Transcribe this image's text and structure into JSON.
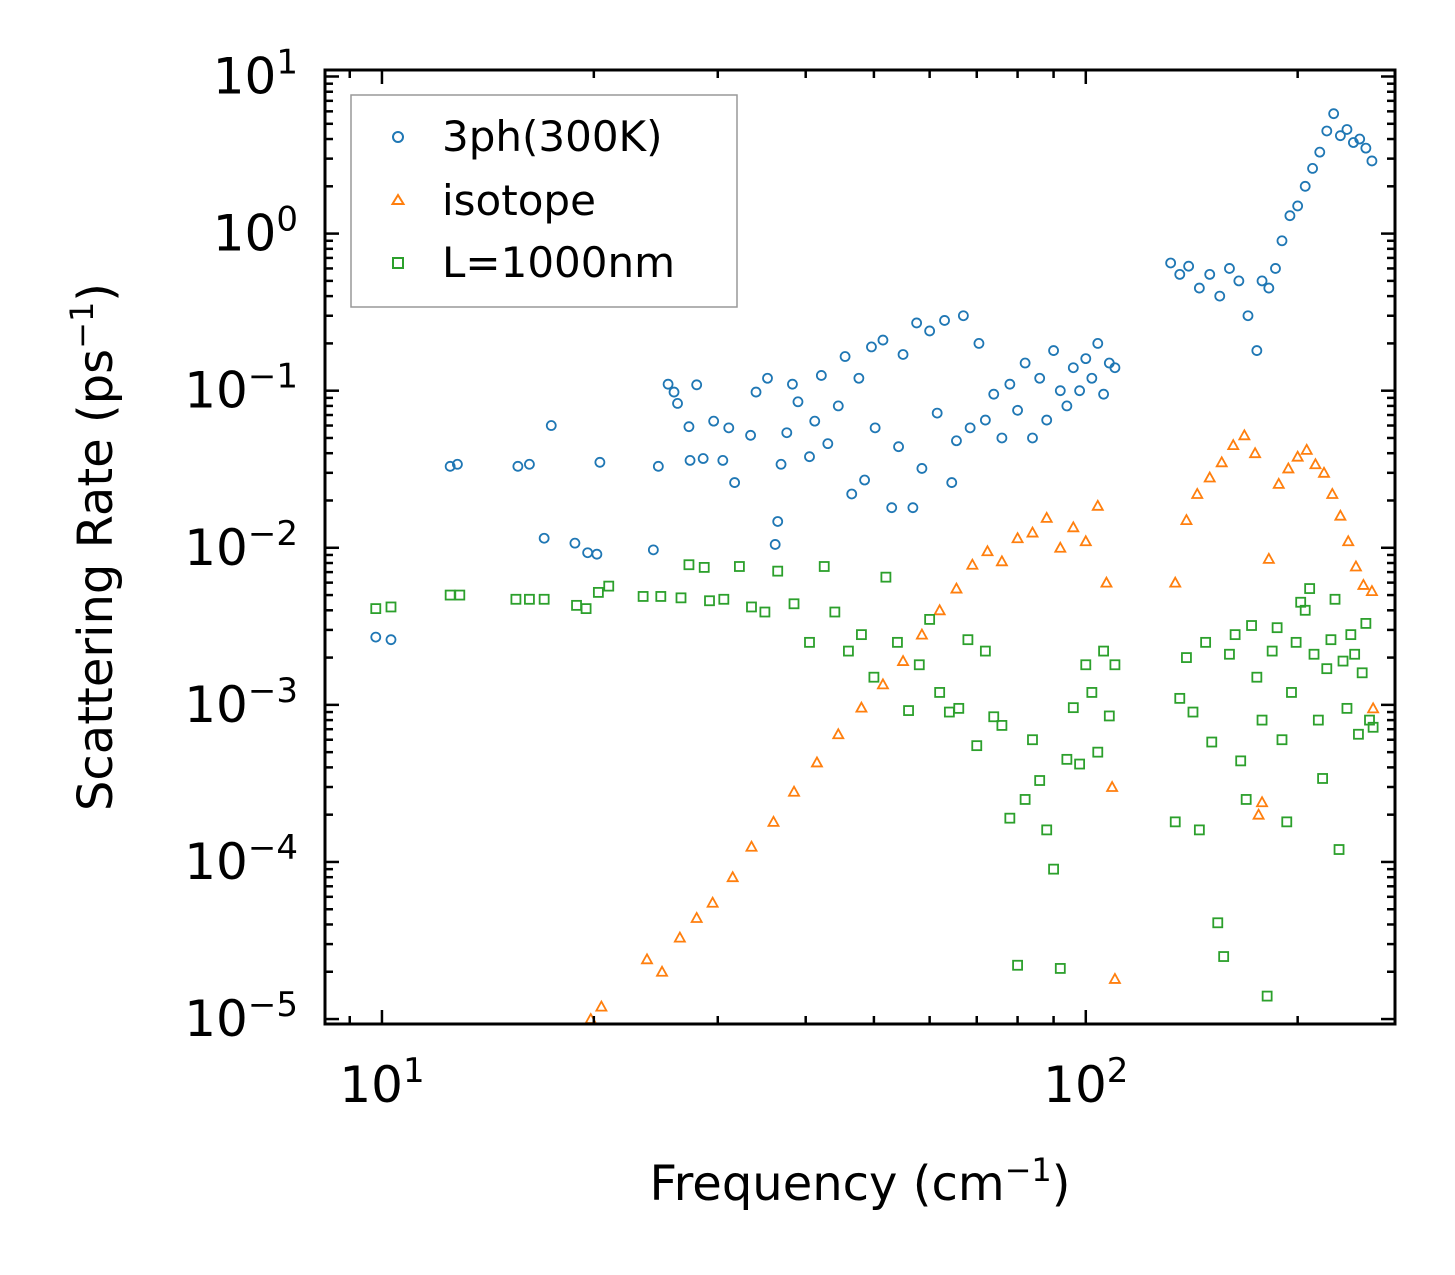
{
  "chart_data": {
    "type": "scatter",
    "xscale": "log",
    "yscale": "log",
    "xlim": [
      8.3,
      275
    ],
    "ylim": [
      9.3e-06,
      11
    ],
    "xlabel": "Frequency (cm",
    "xlabel_sup": "−1",
    "xlabel_end": ")",
    "ylabel": "Scattering Rate (ps",
    "ylabel_sup": "−1",
    "ylabel_end": ")",
    "x_ticks": [
      {
        "value": 10,
        "base": "10",
        "exp": "1"
      },
      {
        "value": 100,
        "base": "10",
        "exp": "2"
      }
    ],
    "y_ticks": [
      {
        "value": 10,
        "base": "10",
        "exp": "1"
      },
      {
        "value": 1,
        "base": "10",
        "exp": "0"
      },
      {
        "value": 0.1,
        "base": "10",
        "exp": "−1"
      },
      {
        "value": 0.01,
        "base": "10",
        "exp": "−2"
      },
      {
        "value": 0.001,
        "base": "10",
        "exp": "−3"
      },
      {
        "value": 0.0001,
        "base": "10",
        "exp": "−4"
      },
      {
        "value": 1e-05,
        "base": "10",
        "exp": "−5"
      }
    ],
    "legend_position": "top-left",
    "series": [
      {
        "name": "3ph(300K)",
        "marker": "circle",
        "color": "#1f77b4",
        "points": [
          [
            9.8,
            0.0027
          ],
          [
            10.3,
            0.0026
          ],
          [
            12.5,
            0.033
          ],
          [
            12.8,
            0.034
          ],
          [
            15.6,
            0.033
          ],
          [
            16.2,
            0.034
          ],
          [
            17.0,
            0.0115
          ],
          [
            17.4,
            0.06
          ],
          [
            18.8,
            0.0107
          ],
          [
            19.6,
            0.0093
          ],
          [
            20.2,
            0.0091
          ],
          [
            20.4,
            0.035
          ],
          [
            24.3,
            0.0097
          ],
          [
            24.7,
            0.033
          ],
          [
            25.5,
            0.11
          ],
          [
            26.0,
            0.098
          ],
          [
            26.3,
            0.083
          ],
          [
            27.3,
            0.059
          ],
          [
            27.4,
            0.036
          ],
          [
            28.0,
            0.109
          ],
          [
            28.6,
            0.037
          ],
          [
            29.6,
            0.064
          ],
          [
            30.5,
            0.036
          ],
          [
            31.1,
            0.058
          ],
          [
            31.7,
            0.026
          ],
          [
            33.4,
            0.052
          ],
          [
            34.0,
            0.098
          ],
          [
            35.3,
            0.12
          ],
          [
            36.2,
            0.0105
          ],
          [
            36.5,
            0.0147
          ],
          [
            36.9,
            0.034
          ],
          [
            37.6,
            0.054
          ],
          [
            38.3,
            0.11
          ],
          [
            39.0,
            0.085
          ],
          [
            40.5,
            0.038
          ],
          [
            41.2,
            0.064
          ],
          [
            42.1,
            0.125
          ],
          [
            43.0,
            0.046
          ],
          [
            44.5,
            0.08
          ],
          [
            45.5,
            0.165
          ],
          [
            46.5,
            0.022
          ],
          [
            47.6,
            0.12
          ],
          [
            48.5,
            0.027
          ],
          [
            49.6,
            0.19
          ],
          [
            50.2,
            0.058
          ],
          [
            51.5,
            0.21
          ],
          [
            53.0,
            0.018
          ],
          [
            54.2,
            0.044
          ],
          [
            55.0,
            0.17
          ],
          [
            56.8,
            0.018
          ],
          [
            57.5,
            0.27
          ],
          [
            58.5,
            0.032
          ],
          [
            60.0,
            0.24
          ],
          [
            61.5,
            0.072
          ],
          [
            63.0,
            0.28
          ],
          [
            64.5,
            0.026
          ],
          [
            65.5,
            0.048
          ],
          [
            67.0,
            0.3
          ],
          [
            68.5,
            0.058
          ],
          [
            70.5,
            0.2
          ],
          [
            72.0,
            0.065
          ],
          [
            74.0,
            0.095
          ],
          [
            76.0,
            0.05
          ],
          [
            78.0,
            0.11
          ],
          [
            80.0,
            0.075
          ],
          [
            82.0,
            0.15
          ],
          [
            84.0,
            0.05
          ],
          [
            86.0,
            0.12
          ],
          [
            88.0,
            0.065
          ],
          [
            90.0,
            0.18
          ],
          [
            92.0,
            0.1
          ],
          [
            94.0,
            0.08
          ],
          [
            96.0,
            0.14
          ],
          [
            98.0,
            0.1
          ],
          [
            100.0,
            0.16
          ],
          [
            102.0,
            0.12
          ],
          [
            104.0,
            0.2
          ],
          [
            106.0,
            0.095
          ],
          [
            108.0,
            0.15
          ],
          [
            110.0,
            0.14
          ],
          [
            132.0,
            0.65
          ],
          [
            136.0,
            0.55
          ],
          [
            140.0,
            0.62
          ],
          [
            145.0,
            0.45
          ],
          [
            150.0,
            0.55
          ],
          [
            155.0,
            0.4
          ],
          [
            160.0,
            0.6
          ],
          [
            165.0,
            0.5
          ],
          [
            170.0,
            0.3
          ],
          [
            175.0,
            0.18
          ],
          [
            178.0,
            0.5
          ],
          [
            182.0,
            0.45
          ],
          [
            186.0,
            0.6
          ],
          [
            190.0,
            0.9
          ],
          [
            195.0,
            1.3
          ],
          [
            200.0,
            1.5
          ],
          [
            205.0,
            2.0
          ],
          [
            210.0,
            2.6
          ],
          [
            215.0,
            3.3
          ],
          [
            220.0,
            4.5
          ],
          [
            225.0,
            5.8
          ],
          [
            230.0,
            4.2
          ],
          [
            235.0,
            4.6
          ],
          [
            240.0,
            3.8
          ],
          [
            245.0,
            4.0
          ],
          [
            250.0,
            3.5
          ],
          [
            255.0,
            2.9
          ]
        ]
      },
      {
        "name": "isotope",
        "marker": "triangle",
        "color": "#ff7f0e",
        "points": [
          [
            19.8,
            1e-05
          ],
          [
            20.5,
            1.2e-05
          ],
          [
            23.8,
            2.4e-05
          ],
          [
            25.0,
            2e-05
          ],
          [
            26.5,
            3.3e-05
          ],
          [
            28.0,
            4.4e-05
          ],
          [
            29.5,
            5.5e-05
          ],
          [
            31.5,
            8e-05
          ],
          [
            33.5,
            0.000125
          ],
          [
            36.0,
            0.00018
          ],
          [
            38.5,
            0.00028
          ],
          [
            41.5,
            0.00043
          ],
          [
            44.5,
            0.00065
          ],
          [
            48.0,
            0.00096
          ],
          [
            51.5,
            0.00135
          ],
          [
            55.0,
            0.0019
          ],
          [
            58.5,
            0.0028
          ],
          [
            62.0,
            0.004
          ],
          [
            65.5,
            0.0055
          ],
          [
            69.0,
            0.0078
          ],
          [
            72.5,
            0.0095
          ],
          [
            76.0,
            0.0082
          ],
          [
            80.0,
            0.0115
          ],
          [
            84.0,
            0.0125
          ],
          [
            88.0,
            0.0155
          ],
          [
            92.0,
            0.01
          ],
          [
            96.0,
            0.0135
          ],
          [
            100.0,
            0.011
          ],
          [
            104.0,
            0.0185
          ],
          [
            107.0,
            0.006
          ],
          [
            109.0,
            0.0003
          ],
          [
            110.0,
            1.8e-05
          ],
          [
            134.0,
            0.006
          ],
          [
            139.0,
            0.015
          ],
          [
            144.0,
            0.022
          ],
          [
            150.0,
            0.028
          ],
          [
            156.0,
            0.035
          ],
          [
            162.0,
            0.045
          ],
          [
            168.0,
            0.052
          ],
          [
            174.0,
            0.04
          ],
          [
            178.0,
            0.00024
          ],
          [
            176.0,
            0.0002
          ],
          [
            182.0,
            0.0085
          ],
          [
            188.0,
            0.0255
          ],
          [
            194.0,
            0.032
          ],
          [
            200.0,
            0.038
          ],
          [
            206.0,
            0.042
          ],
          [
            212.0,
            0.034
          ],
          [
            218.0,
            0.03
          ],
          [
            224.0,
            0.022
          ],
          [
            230.0,
            0.016
          ],
          [
            236.0,
            0.011
          ],
          [
            242.0,
            0.0076
          ],
          [
            248.0,
            0.0058
          ],
          [
            255.0,
            0.0053
          ],
          [
            256.0,
            0.00095
          ]
        ]
      },
      {
        "name": "L=1000nm",
        "marker": "square",
        "color": "#2ca02c",
        "points": [
          [
            9.8,
            0.0041
          ],
          [
            10.3,
            0.0042
          ],
          [
            12.5,
            0.005
          ],
          [
            12.9,
            0.005
          ],
          [
            15.5,
            0.0047
          ],
          [
            16.2,
            0.0047
          ],
          [
            17.0,
            0.0047
          ],
          [
            18.9,
            0.0043
          ],
          [
            19.5,
            0.0041
          ],
          [
            20.3,
            0.0052
          ],
          [
            21.0,
            0.0057
          ],
          [
            23.5,
            0.0049
          ],
          [
            24.9,
            0.0049
          ],
          [
            26.6,
            0.0048
          ],
          [
            27.3,
            0.0078
          ],
          [
            28.7,
            0.0075
          ],
          [
            29.2,
            0.0046
          ],
          [
            30.6,
            0.0047
          ],
          [
            32.2,
            0.0076
          ],
          [
            33.5,
            0.0042
          ],
          [
            35.0,
            0.0039
          ],
          [
            36.5,
            0.0071
          ],
          [
            38.5,
            0.0044
          ],
          [
            40.5,
            0.0025
          ],
          [
            42.5,
            0.0076
          ],
          [
            44.0,
            0.0039
          ],
          [
            46.0,
            0.0022
          ],
          [
            48.0,
            0.0028
          ],
          [
            50.0,
            0.0015
          ],
          [
            52.0,
            0.0065
          ],
          [
            54.0,
            0.0025
          ],
          [
            56.0,
            0.00092
          ],
          [
            58.0,
            0.0018
          ],
          [
            60.0,
            0.0035
          ],
          [
            62.0,
            0.0012
          ],
          [
            64.0,
            0.0009
          ],
          [
            66.0,
            0.00095
          ],
          [
            68.0,
            0.0026
          ],
          [
            70.0,
            0.00055
          ],
          [
            72.0,
            0.0022
          ],
          [
            74.0,
            0.00084
          ],
          [
            76.0,
            0.00074
          ],
          [
            78.0,
            0.00019
          ],
          [
            80.0,
            2.2e-05
          ],
          [
            82.0,
            0.00025
          ],
          [
            84.0,
            0.0006
          ],
          [
            86.0,
            0.00033
          ],
          [
            88.0,
            0.00016
          ],
          [
            90.0,
            9e-05
          ],
          [
            92.0,
            2.1e-05
          ],
          [
            94.0,
            0.00045
          ],
          [
            96.0,
            0.00096
          ],
          [
            98.0,
            0.00042
          ],
          [
            100.0,
            0.0018
          ],
          [
            102.0,
            0.0012
          ],
          [
            104.0,
            0.0005
          ],
          [
            106.0,
            0.0022
          ],
          [
            108.0,
            0.00085
          ],
          [
            110.0,
            0.0018
          ],
          [
            134.0,
            0.00018
          ],
          [
            136.0,
            0.0011
          ],
          [
            139.0,
            0.002
          ],
          [
            142.0,
            0.0009
          ],
          [
            145.0,
            0.00016
          ],
          [
            148.0,
            0.0025
          ],
          [
            151.0,
            0.00058
          ],
          [
            154.0,
            4.1e-05
          ],
          [
            157.0,
            2.5e-05
          ],
          [
            160.0,
            0.0021
          ],
          [
            163.0,
            0.0028
          ],
          [
            166.0,
            0.00044
          ],
          [
            169.0,
            0.00025
          ],
          [
            172.0,
            0.0032
          ],
          [
            175.0,
            0.0015
          ],
          [
            178.0,
            0.0008
          ],
          [
            181.0,
            1.4e-05
          ],
          [
            184.0,
            0.0022
          ],
          [
            187.0,
            0.0031
          ],
          [
            190.0,
            0.0006
          ],
          [
            193.0,
            0.00018
          ],
          [
            196.0,
            0.0012
          ],
          [
            199.0,
            0.0025
          ],
          [
            202.0,
            0.0045
          ],
          [
            205.0,
            0.004
          ],
          [
            208.0,
            0.0055
          ],
          [
            211.0,
            0.0021
          ],
          [
            214.0,
            0.0008
          ],
          [
            217.0,
            0.00034
          ],
          [
            220.0,
            0.0017
          ],
          [
            223.0,
            0.0026
          ],
          [
            226.0,
            0.0047
          ],
          [
            229.0,
            0.00012
          ],
          [
            232.0,
            0.0019
          ],
          [
            235.0,
            0.00095
          ],
          [
            238.0,
            0.0028
          ],
          [
            241.0,
            0.0021
          ],
          [
            244.0,
            0.00065
          ],
          [
            247.0,
            0.0016
          ],
          [
            250.0,
            0.0033
          ],
          [
            253.0,
            0.0008
          ],
          [
            256.0,
            0.00072
          ]
        ]
      }
    ]
  }
}
